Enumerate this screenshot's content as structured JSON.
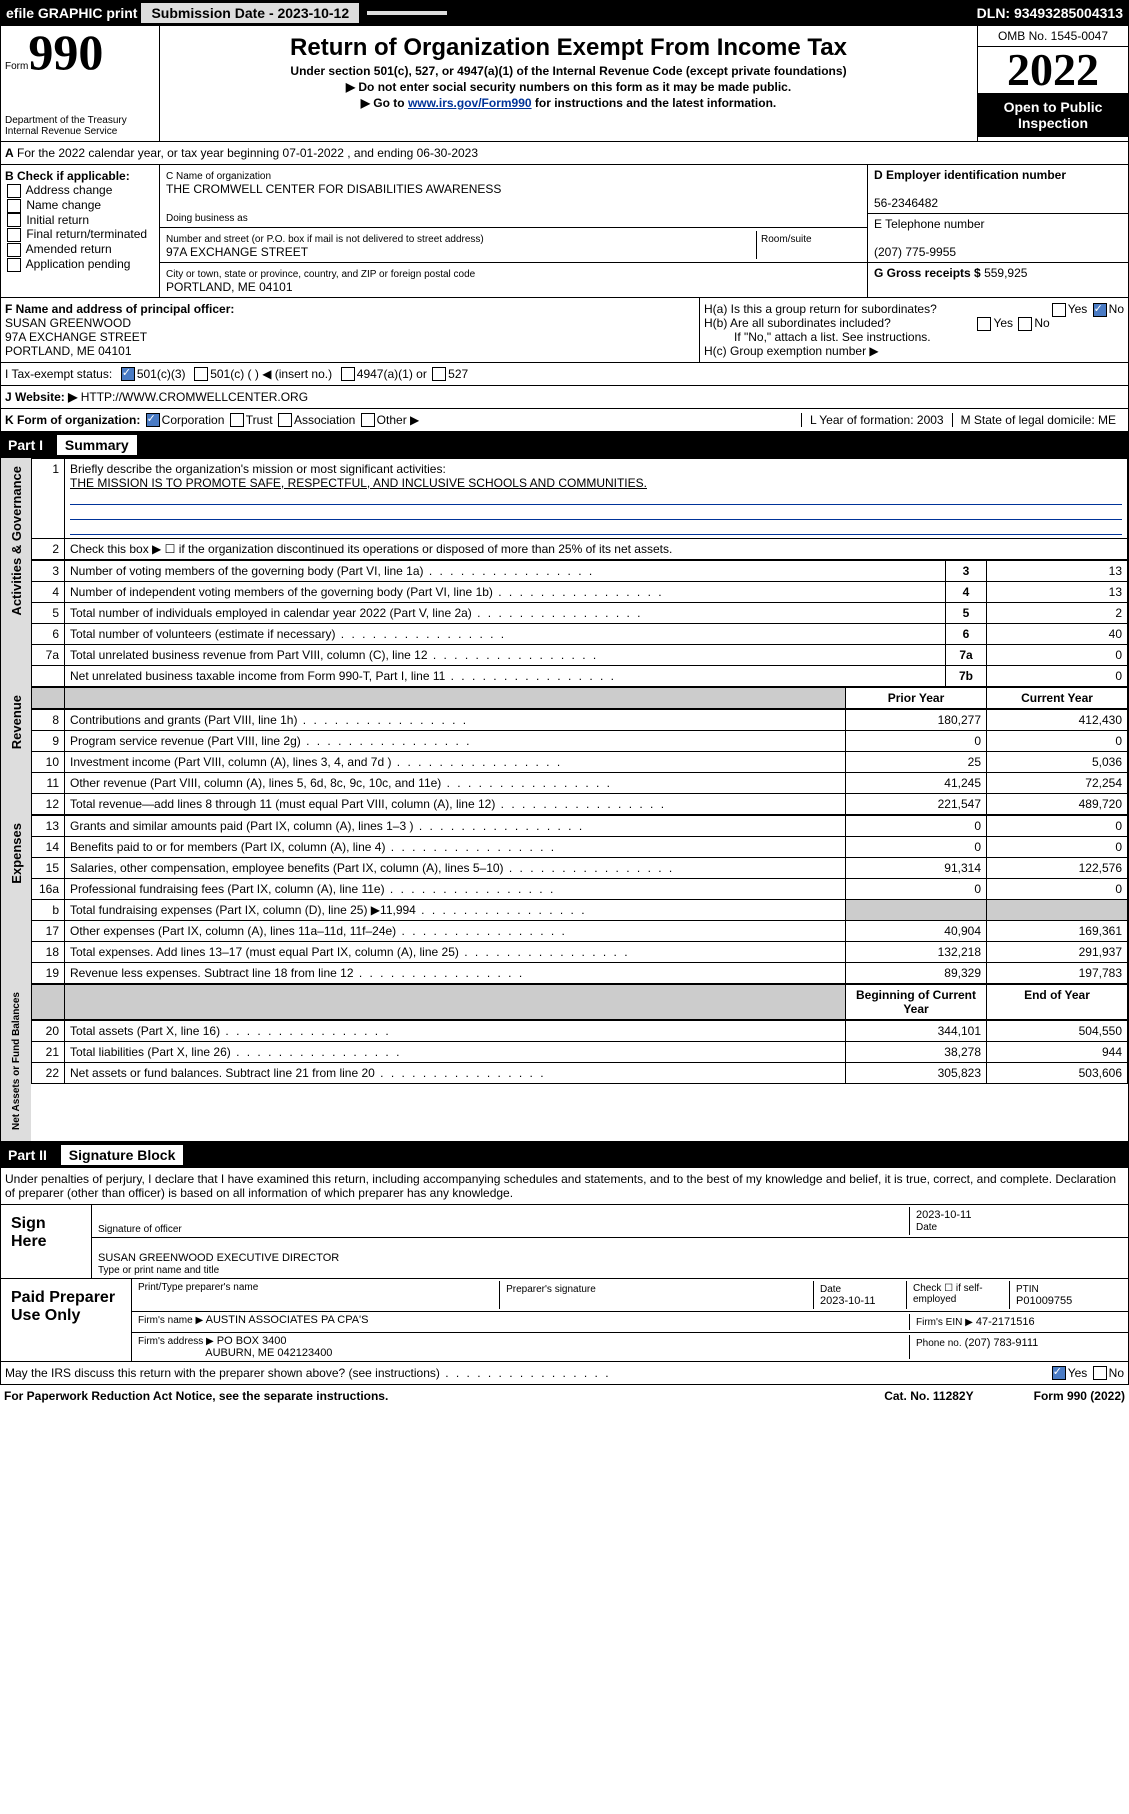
{
  "topbar": {
    "efile": "efile GRAPHIC print",
    "submission_label": "Submission Date - 2023-10-12",
    "dln": "DLN: 93493285004313"
  },
  "header": {
    "form_word": "Form",
    "form_num": "990",
    "dept": "Department of the Treasury\nInternal Revenue Service",
    "title": "Return of Organization Exempt From Income Tax",
    "subtitle": "Under section 501(c), 527, or 4947(a)(1) of the Internal Revenue Code (except private foundations)",
    "note1": "Do not enter social security numbers on this form as it may be made public.",
    "note2_prefix": "Go to ",
    "note2_link": "www.irs.gov/Form990",
    "note2_suffix": " for instructions and the latest information.",
    "omb": "OMB No. 1545-0047",
    "year": "2022",
    "open": "Open to Public Inspection"
  },
  "row_a": {
    "text": "For the 2022 calendar year, or tax year beginning 07-01-2022   , and ending 06-30-2023"
  },
  "section_b": {
    "label": "B Check if applicable:",
    "items": [
      "Address change",
      "Name change",
      "Initial return",
      "Final return/terminated",
      "Amended return",
      "Application pending"
    ]
  },
  "section_c": {
    "name_label": "C Name of organization",
    "name": "THE CROMWELL CENTER FOR DISABILITIES AWARENESS",
    "dba_label": "Doing business as",
    "street_label": "Number and street (or P.O. box if mail is not delivered to street address)",
    "room_label": "Room/suite",
    "street": "97A EXCHANGE STREET",
    "city_label": "City or town, state or province, country, and ZIP or foreign postal code",
    "city": "PORTLAND, ME  04101"
  },
  "section_d": {
    "ein_label": "D Employer identification number",
    "ein": "56-2346482",
    "phone_label": "E Telephone number",
    "phone": "(207) 775-9955",
    "gross_label": "G Gross receipts $ ",
    "gross": "559,925"
  },
  "section_f": {
    "label": "F Name and address of principal officer:",
    "name": "SUSAN GREENWOOD",
    "addr1": "97A EXCHANGE STREET",
    "addr2": "PORTLAND, ME  04101"
  },
  "section_h": {
    "ha": "H(a)  Is this a group return for subordinates?",
    "hb": "H(b)  Are all subordinates included?",
    "hb_note": "If \"No,\" attach a list. See instructions.",
    "hc": "H(c)  Group exemption number ▶",
    "yes": "Yes",
    "no": "No"
  },
  "row_i": {
    "label": "I   Tax-exempt status:",
    "opts": [
      "501(c)(3)",
      "501(c) (  ) ◀ (insert no.)",
      "4947(a)(1) or",
      "527"
    ]
  },
  "row_j": {
    "label": "J   Website: ▶",
    "value": "HTTP://WWW.CROMWELLCENTER.ORG"
  },
  "row_k": {
    "label": "K Form of organization:",
    "opts": [
      "Corporation",
      "Trust",
      "Association",
      "Other ▶"
    ],
    "l": "L Year of formation: 2003",
    "m": "M State of legal domicile: ME"
  },
  "part1": {
    "header_part": "Part I",
    "header_title": "Summary",
    "q1": "Briefly describe the organization's mission or most significant activities:",
    "q1_ans": "THE MISSION IS TO PROMOTE SAFE, RESPECTFUL, AND INCLUSIVE SCHOOLS AND COMMUNITIES.",
    "q2": "Check this box ▶ ☐  if the organization discontinued its operations or disposed of more than 25% of its net assets."
  },
  "sections": {
    "gov": "Activities & Governance",
    "rev": "Revenue",
    "exp": "Expenses",
    "net": "Net Assets or Fund Balances"
  },
  "gov_rows": [
    {
      "n": "3",
      "t": "Number of voting members of the governing body (Part VI, line 1a)",
      "b": "3",
      "v": "13"
    },
    {
      "n": "4",
      "t": "Number of independent voting members of the governing body (Part VI, line 1b)",
      "b": "4",
      "v": "13"
    },
    {
      "n": "5",
      "t": "Total number of individuals employed in calendar year 2022 (Part V, line 2a)",
      "b": "5",
      "v": "2"
    },
    {
      "n": "6",
      "t": "Total number of volunteers (estimate if necessary)",
      "b": "6",
      "v": "40"
    },
    {
      "n": "7a",
      "t": "Total unrelated business revenue from Part VIII, column (C), line 12",
      "b": "7a",
      "v": "0"
    },
    {
      "n": "",
      "t": "Net unrelated business taxable income from Form 990-T, Part I, line 11",
      "b": "7b",
      "v": "0"
    }
  ],
  "year_cols": {
    "prior": "Prior Year",
    "current": "Current Year",
    "boy": "Beginning of Current Year",
    "eoy": "End of Year"
  },
  "rev_rows": [
    {
      "n": "8",
      "t": "Contributions and grants (Part VIII, line 1h)",
      "p": "180,277",
      "c": "412,430"
    },
    {
      "n": "9",
      "t": "Program service revenue (Part VIII, line 2g)",
      "p": "0",
      "c": "0"
    },
    {
      "n": "10",
      "t": "Investment income (Part VIII, column (A), lines 3, 4, and 7d )",
      "p": "25",
      "c": "5,036"
    },
    {
      "n": "11",
      "t": "Other revenue (Part VIII, column (A), lines 5, 6d, 8c, 9c, 10c, and 11e)",
      "p": "41,245",
      "c": "72,254"
    },
    {
      "n": "12",
      "t": "Total revenue—add lines 8 through 11 (must equal Part VIII, column (A), line 12)",
      "p": "221,547",
      "c": "489,720"
    }
  ],
  "exp_rows": [
    {
      "n": "13",
      "t": "Grants and similar amounts paid (Part IX, column (A), lines 1–3 )",
      "p": "0",
      "c": "0"
    },
    {
      "n": "14",
      "t": "Benefits paid to or for members (Part IX, column (A), line 4)",
      "p": "0",
      "c": "0"
    },
    {
      "n": "15",
      "t": "Salaries, other compensation, employee benefits (Part IX, column (A), lines 5–10)",
      "p": "91,314",
      "c": "122,576"
    },
    {
      "n": "16a",
      "t": "Professional fundraising fees (Part IX, column (A), line 11e)",
      "p": "0",
      "c": "0"
    },
    {
      "n": "b",
      "t": "Total fundraising expenses (Part IX, column (D), line 25) ▶11,994",
      "p": "",
      "c": "",
      "shade": true
    },
    {
      "n": "17",
      "t": "Other expenses (Part IX, column (A), lines 11a–11d, 11f–24e)",
      "p": "40,904",
      "c": "169,361"
    },
    {
      "n": "18",
      "t": "Total expenses. Add lines 13–17 (must equal Part IX, column (A), line 25)",
      "p": "132,218",
      "c": "291,937"
    },
    {
      "n": "19",
      "t": "Revenue less expenses. Subtract line 18 from line 12",
      "p": "89,329",
      "c": "197,783"
    }
  ],
  "net_rows": [
    {
      "n": "20",
      "t": "Total assets (Part X, line 16)",
      "p": "344,101",
      "c": "504,550"
    },
    {
      "n": "21",
      "t": "Total liabilities (Part X, line 26)",
      "p": "38,278",
      "c": "944"
    },
    {
      "n": "22",
      "t": "Net assets or fund balances. Subtract line 21 from line 20",
      "p": "305,823",
      "c": "503,606"
    }
  ],
  "part2": {
    "header_part": "Part II",
    "header_title": "Signature Block",
    "decl": "Under penalties of perjury, I declare that I have examined this return, including accompanying schedules and statements, and to the best of my knowledge and belief, it is true, correct, and complete. Declaration of preparer (other than officer) is based on all information of which preparer has any knowledge."
  },
  "sign": {
    "here": "Sign Here",
    "sig_label": "Signature of officer",
    "date": "2023-10-11",
    "date_label": "Date",
    "name": "SUSAN GREENWOOD  EXECUTIVE DIRECTOR",
    "name_label": "Type or print name and title"
  },
  "paid": {
    "title": "Paid Preparer Use Only",
    "h1": "Print/Type preparer's name",
    "h2": "Preparer's signature",
    "h3": "Date",
    "date": "2023-10-11",
    "h4": "Check ☐ if self-employed",
    "h5": "PTIN",
    "ptin": "P01009755",
    "firm_name_l": "Firm's name    ▶",
    "firm_name": "AUSTIN ASSOCIATES PA CPA'S",
    "firm_ein_l": "Firm's EIN ▶",
    "firm_ein": "47-2171516",
    "firm_addr_l": "Firm's address ▶",
    "firm_addr1": "PO BOX 3400",
    "firm_addr2": "AUBURN, ME  042123400",
    "phone_l": "Phone no.",
    "phone": "(207) 783-9111"
  },
  "footer": {
    "discuss": "May the IRS discuss this return with the preparer shown above? (see instructions)",
    "paperwork": "For Paperwork Reduction Act Notice, see the separate instructions.",
    "cat": "Cat. No. 11282Y",
    "form": "Form 990 (2022)"
  },
  "colors": {
    "link": "#003399",
    "check": "#4a7bc4",
    "shade": "#cccccc"
  }
}
